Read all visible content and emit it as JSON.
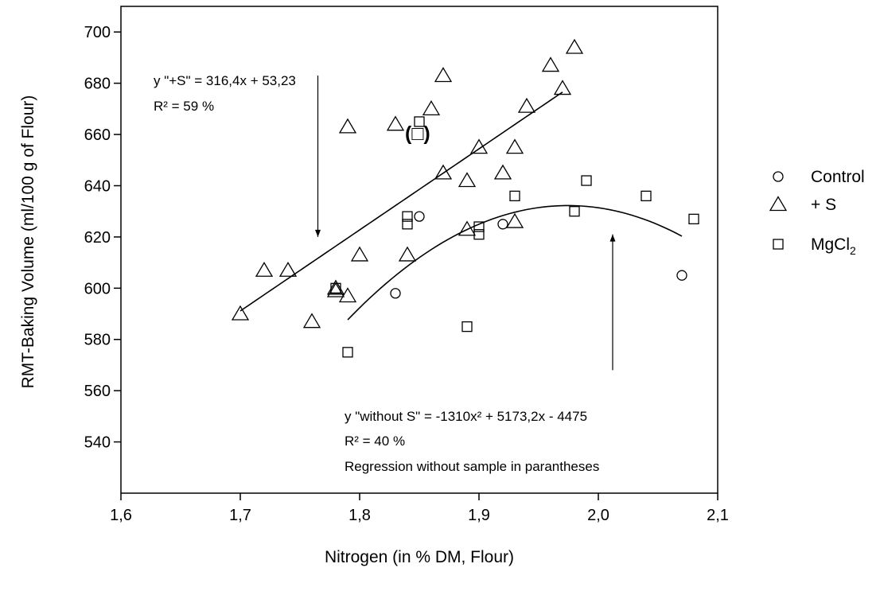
{
  "chart_data": {
    "type": "scatter",
    "xlabel": "Nitrogen (in % DM, Flour)",
    "ylabel": "RMT-Baking Volume (ml/100 g of Flour)",
    "xlim": [
      1.6,
      2.1
    ],
    "ylim": [
      520,
      710
    ],
    "x_ticks": [
      "1,6",
      "1,7",
      "1,8",
      "1,9",
      "2,0",
      "2,1"
    ],
    "y_ticks": [
      "540",
      "560",
      "580",
      "600",
      "620",
      "640",
      "660",
      "680",
      "700"
    ],
    "grid": false,
    "legend_position": "right",
    "series": [
      {
        "name": "Control",
        "marker": "circle",
        "points": [
          [
            1.83,
            598
          ],
          [
            1.85,
            628
          ],
          [
            1.92,
            625
          ],
          [
            2.07,
            605
          ]
        ]
      },
      {
        "name": "+ S",
        "marker": "triangle",
        "points": [
          [
            1.7,
            590
          ],
          [
            1.72,
            607
          ],
          [
            1.74,
            607
          ],
          [
            1.76,
            587
          ],
          [
            1.78,
            600
          ],
          [
            1.78,
            599
          ],
          [
            1.79,
            597
          ],
          [
            1.79,
            663
          ],
          [
            1.8,
            613
          ],
          [
            1.83,
            664
          ],
          [
            1.84,
            613
          ],
          [
            1.86,
            670
          ],
          [
            1.87,
            683
          ],
          [
            1.87,
            645
          ],
          [
            1.89,
            642
          ],
          [
            1.89,
            623
          ],
          [
            1.9,
            655
          ],
          [
            1.92,
            645
          ],
          [
            1.93,
            655
          ],
          [
            1.93,
            626
          ],
          [
            1.94,
            671
          ],
          [
            1.96,
            687
          ],
          [
            1.97,
            678
          ],
          [
            1.98,
            694
          ]
        ]
      },
      {
        "name": "MgCl2",
        "marker": "square",
        "points": [
          [
            1.78,
            600
          ],
          [
            1.79,
            575
          ],
          [
            1.84,
            628
          ],
          [
            1.84,
            625
          ],
          [
            1.85,
            665
          ],
          [
            1.89,
            585
          ],
          [
            1.9,
            624
          ],
          [
            1.9,
            621
          ],
          [
            1.93,
            636
          ],
          [
            1.98,
            630
          ],
          [
            1.99,
            642
          ],
          [
            2.04,
            636
          ],
          [
            2.08,
            627
          ]
        ]
      }
    ],
    "regressions": [
      {
        "type": "linear",
        "slope": 316.4,
        "intercept": 53.23,
        "x_range": [
          1.7,
          1.97
        ]
      },
      {
        "type": "quadratic",
        "a": -1310,
        "b": 5173.2,
        "c": -4475,
        "x_range": [
          1.79,
          2.07
        ]
      }
    ],
    "annotations": [
      {
        "id": "eq_s",
        "text": "y \"+S\" = 316,4x + 53,23"
      },
      {
        "id": "r2_s",
        "text": "R² = 59 %"
      },
      {
        "id": "eq_without",
        "text": "y \"without S\" = -1310x² + 5173,2x - 4475"
      },
      {
        "id": "r2_without",
        "text": "R² = 40 %"
      },
      {
        "id": "note",
        "text": "Regression without sample in parantheses"
      },
      {
        "id": "paren",
        "text": "(□)"
      }
    ],
    "arrows": [
      {
        "from": [
          1.765,
          683
        ],
        "to": [
          1.765,
          620
        ]
      },
      {
        "from": [
          2.012,
          568
        ],
        "to": [
          2.012,
          621
        ]
      }
    ]
  },
  "legend": {
    "items": [
      {
        "marker": "circle",
        "label": "Control"
      },
      {
        "marker": "triangle",
        "label": "+ S"
      },
      {
        "marker": "square",
        "label": "MgCl",
        "subscript": "2"
      }
    ]
  }
}
